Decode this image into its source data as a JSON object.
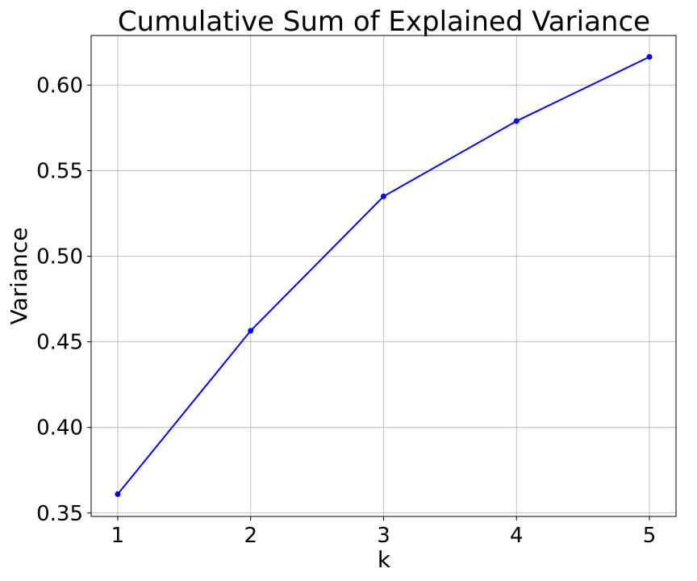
{
  "chart_data": {
    "type": "line",
    "title": "Cumulative Sum of Explained Variance",
    "xlabel": "k",
    "ylabel": "Variance",
    "x": [
      1,
      2,
      3,
      4,
      5
    ],
    "series": [
      {
        "values": [
          0.361,
          0.4565,
          0.535,
          0.579,
          0.6165
        ]
      }
    ],
    "xlim": [
      0.8,
      5.2
    ],
    "ylim": [
      0.348,
      0.629
    ],
    "xticks": [
      1,
      2,
      3,
      4,
      5
    ],
    "xtick_labels": [
      "1",
      "2",
      "3",
      "4",
      "5"
    ],
    "yticks": [
      0.35,
      0.4,
      0.45,
      0.5,
      0.55,
      0.6
    ],
    "ytick_labels": [
      "0.35",
      "0.40",
      "0.45",
      "0.50",
      "0.55",
      "0.60"
    ],
    "grid": true,
    "line_color": "#0000ff",
    "marker": "circle",
    "grid_color": "#b0b0b0",
    "spine_color": "#000000"
  }
}
